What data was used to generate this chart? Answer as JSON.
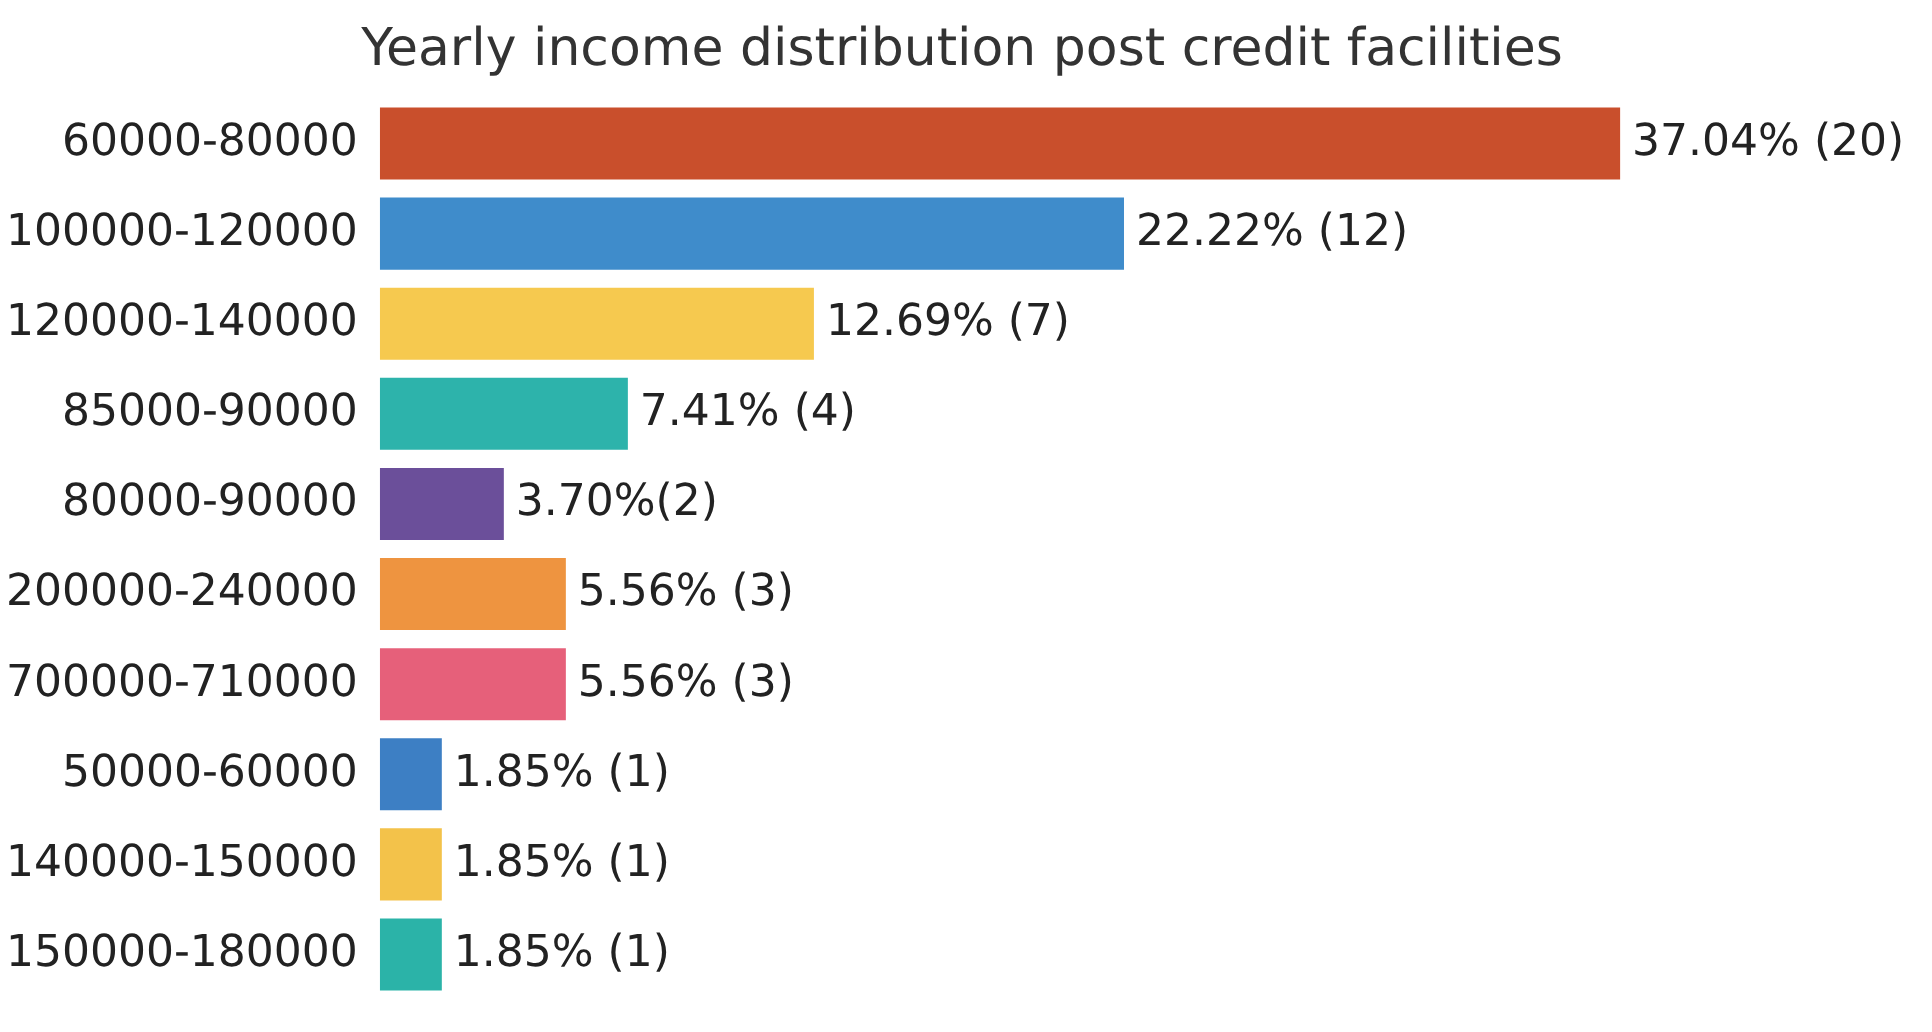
{
  "chart_data": {
    "type": "bar",
    "orientation": "horizontal",
    "title": "Yearly income distribution post credit facilities",
    "categories": [
      "60000-80000",
      "100000-120000",
      "120000-140000",
      "85000-90000",
      "80000-90000",
      "200000-240000",
      "700000-710000",
      "50000-60000",
      "140000-150000",
      "150000-180000"
    ],
    "values": [
      20,
      12,
      7,
      4,
      2,
      3,
      3,
      1,
      1,
      1
    ],
    "value_labels": [
      "37.04% (20)",
      "22.22% (12)",
      "12.69% (7)",
      "7.41% (4)",
      "3.70%(2)",
      "5.56% (3)",
      "5.56% (3)",
      "1.85% (1)",
      "1.85% (1)",
      "1.85% (1)"
    ],
    "colors": [
      "#c94f2c",
      "#3f8ccb",
      "#f6c94f",
      "#2db3ab",
      "#6b4f9a",
      "#ee9440",
      "#e6607a",
      "#3d7fc4",
      "#f3c24a",
      "#2bb3a8"
    ],
    "grid": false,
    "legend": false
  }
}
